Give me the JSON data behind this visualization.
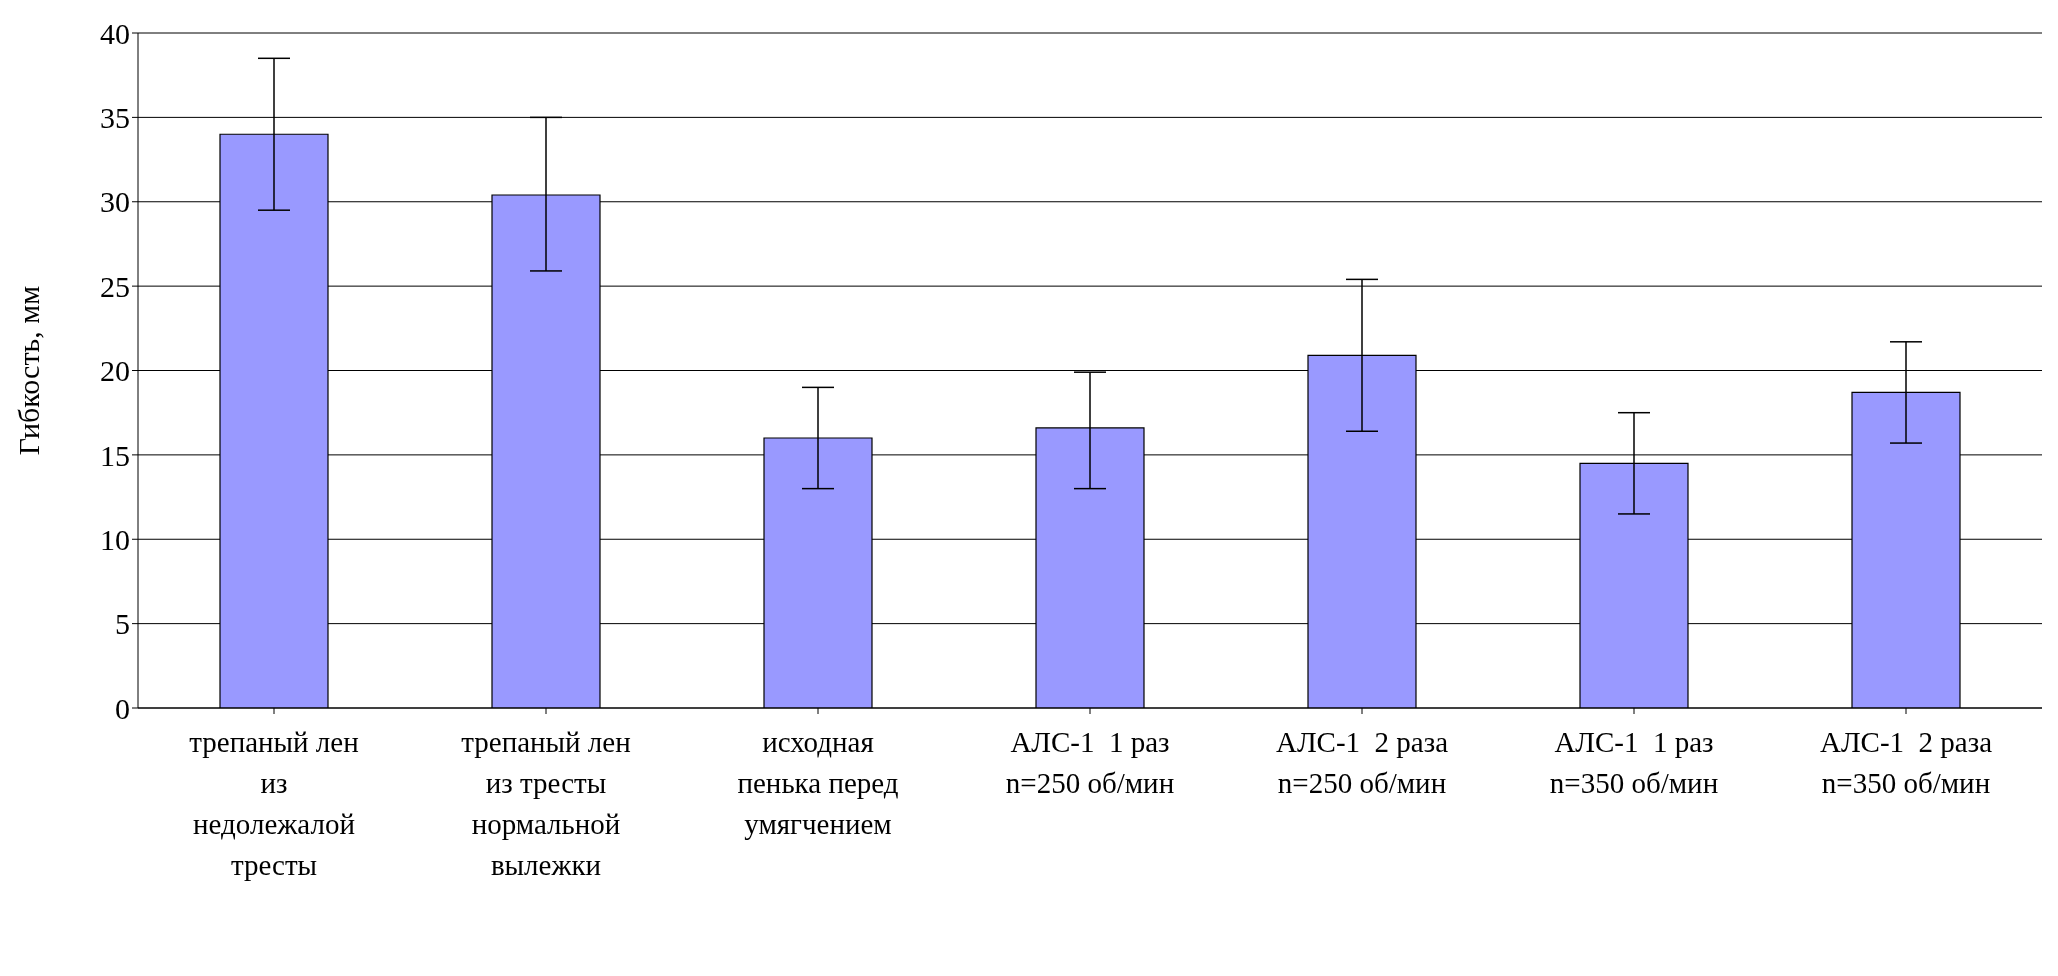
{
  "chart_data": {
    "type": "bar",
    "ylabel": "Гибкость, мм",
    "categories": [
      "трепаный лен из недолежалой тресты",
      "трепаный лен из тресты нормальной вылежки",
      "исходная пенька перед умягчением",
      "АЛС-1  1 раз n=250 об/мин",
      "АЛС-1  2 раза n=250 об/мин",
      "АЛС-1  1 раз n=350 об/мин",
      "АЛС-1  2 раза n=350 об/мин"
    ],
    "values": [
      34.0,
      30.4,
      16.0,
      16.6,
      20.9,
      14.5,
      18.7
    ],
    "errors": [
      [
        29.5,
        38.5
      ],
      [
        25.9,
        35.0
      ],
      [
        13.0,
        19.0
      ],
      [
        13.0,
        19.9
      ],
      [
        16.4,
        25.4
      ],
      [
        11.5,
        17.5
      ],
      [
        15.7,
        21.7
      ]
    ],
    "color": "#9999ff",
    "ylim": [
      0,
      40
    ],
    "yticks": [
      0,
      5,
      10,
      15,
      20,
      25,
      30,
      35,
      40
    ],
    "grid": "y",
    "legend": false
  }
}
